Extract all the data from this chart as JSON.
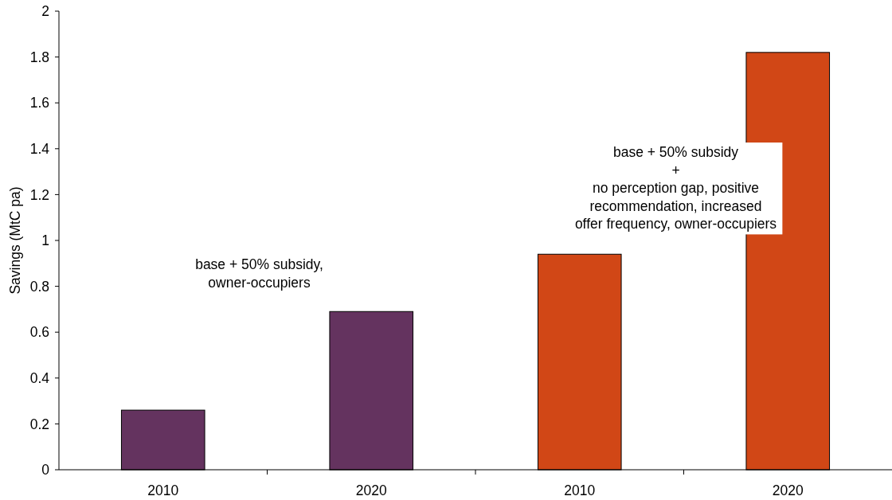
{
  "chart_data": {
    "type": "bar",
    "categories": [
      "2010",
      "2020",
      "2010",
      "2020"
    ],
    "values": [
      0.26,
      0.69,
      0.94,
      1.82
    ],
    "colors": [
      "#64335f",
      "#64335f",
      "#d14716",
      "#d14716"
    ],
    "ylabel": "Savings (MtC pa)",
    "ylim": [
      0,
      2
    ],
    "yticks": [
      0,
      0.2,
      0.4,
      0.6,
      0.8,
      1,
      1.2,
      1.4,
      1.6,
      1.8,
      2
    ],
    "annotations": [
      "base + 50% subsidy,\nowner-occupiers",
      "base + 50% subsidy\n+\nno perception gap, positive\nrecommendation, increased\noffer frequency, owner-occupiers"
    ]
  }
}
